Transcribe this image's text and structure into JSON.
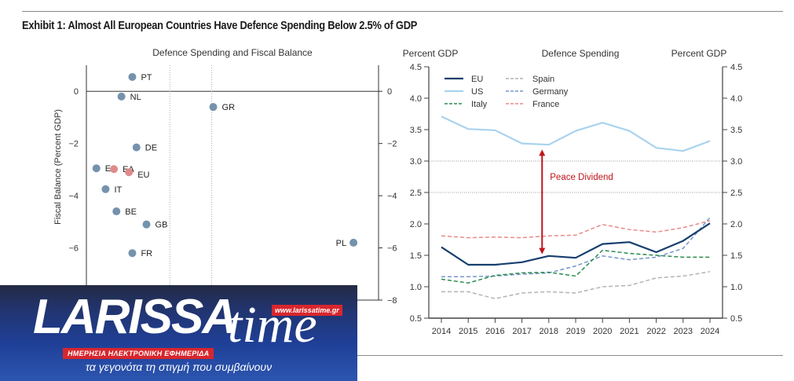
{
  "exhibit_title": "Exhibit 1: Almost All European Countries Have Defence Spending Below 2.5% of GDP",
  "logo": {
    "name_main": "LARISSA",
    "name_accent": "time",
    "url": "www.larissatime.gr",
    "subtitle": "ΗΜΕΡΗΣΙΑ ΗΛΕΚΤΡΟΝΙΚΗ ΕΦΗΜΕΡΙΔΑ",
    "tagline": "τα γεγονότα τη στιγμή που συμβαίνουν"
  },
  "chart_data": [
    {
      "type": "scatter",
      "title": "Defence Spending and Fiscal Balance",
      "xlabel": "",
      "ylabel": "Fiscal Balance (Percent GDP)",
      "xlim": [
        1.0,
        4.5
      ],
      "ylim": [
        -8,
        1
      ],
      "yticks": [
        0,
        -2,
        -4,
        -6,
        -8
      ],
      "ytick_labels": [
        "0",
        "−2",
        "−4",
        "−6",
        "−8"
      ],
      "reference_lines_x": [
        2.0,
        2.5
      ],
      "zero_line": true,
      "colors": {
        "country": "#7592ad",
        "aggregate": "#e08a8a"
      },
      "points": [
        {
          "label": "PT",
          "x": 1.55,
          "y": 0.55,
          "group": "country"
        },
        {
          "label": "NL",
          "x": 1.42,
          "y": -0.2,
          "group": "country"
        },
        {
          "label": "GR",
          "x": 2.52,
          "y": -0.6,
          "group": "country"
        },
        {
          "label": "DE",
          "x": 1.6,
          "y": -2.15,
          "group": "country"
        },
        {
          "label": "ES",
          "x": 1.12,
          "y": -2.95,
          "group": "country"
        },
        {
          "label": "EA",
          "x": 1.33,
          "y": -2.98,
          "group": "aggregate"
        },
        {
          "label": "EU",
          "x": 1.51,
          "y": -3.1,
          "group": "aggregate"
        },
        {
          "label": "IT",
          "x": 1.23,
          "y": -3.75,
          "group": "country"
        },
        {
          "label": "BE",
          "x": 1.36,
          "y": -4.6,
          "group": "country"
        },
        {
          "label": "GB",
          "x": 1.72,
          "y": -5.1,
          "group": "country"
        },
        {
          "label": "FR",
          "x": 1.55,
          "y": -6.2,
          "group": "country"
        },
        {
          "label": "PL",
          "x": 4.2,
          "y": -5.8,
          "group": "country",
          "label_side": "left"
        }
      ]
    },
    {
      "type": "line",
      "title": "Defence Spending",
      "ylabel_left": "Percent GDP",
      "ylabel_right": "Percent GDP",
      "x": [
        2014,
        2015,
        2016,
        2017,
        2018,
        2019,
        2020,
        2021,
        2022,
        2023,
        2024
      ],
      "ylim": [
        0.5,
        4.5
      ],
      "yticks": [
        0.5,
        1.0,
        1.5,
        2.0,
        2.5,
        3.0,
        3.5,
        4.0,
        4.5
      ],
      "gridlines_y": [
        2.5,
        3.0
      ],
      "legend_position": "top-left",
      "series": [
        {
          "name": "EU",
          "color": "#163f6e",
          "style": "solid",
          "values": [
            1.63,
            1.35,
            1.35,
            1.39,
            1.49,
            1.46,
            1.68,
            1.71,
            1.55,
            1.73,
            2.01
          ]
        },
        {
          "name": "US",
          "color": "#a9d3ee",
          "style": "solid",
          "values": [
            3.71,
            3.51,
            3.49,
            3.28,
            3.26,
            3.48,
            3.61,
            3.48,
            3.21,
            3.16,
            3.32
          ]
        },
        {
          "name": "Italy",
          "color": "#2a8a4f",
          "style": "dashed",
          "values": [
            1.12,
            1.06,
            1.18,
            1.22,
            1.23,
            1.17,
            1.58,
            1.53,
            1.5,
            1.47,
            1.47
          ]
        },
        {
          "name": "Spain",
          "color": "#b3b3b3",
          "style": "dashed",
          "values": [
            0.92,
            0.92,
            0.81,
            0.9,
            0.92,
            0.9,
            1.0,
            1.02,
            1.14,
            1.17,
            1.24
          ]
        },
        {
          "name": "Germany",
          "color": "#7796c9",
          "style": "dashed",
          "values": [
            1.16,
            1.16,
            1.17,
            1.2,
            1.22,
            1.33,
            1.49,
            1.43,
            1.47,
            1.61,
            2.1
          ]
        },
        {
          "name": "France",
          "color": "#e88a8a",
          "style": "dashed",
          "values": [
            1.81,
            1.78,
            1.79,
            1.78,
            1.81,
            1.82,
            1.99,
            1.91,
            1.87,
            1.94,
            2.05
          ]
        }
      ],
      "annotation": {
        "text": "Peace Dividend",
        "color": "#c0161c",
        "x": 2017.75,
        "from": 3.17,
        "to": 1.53
      }
    }
  ]
}
